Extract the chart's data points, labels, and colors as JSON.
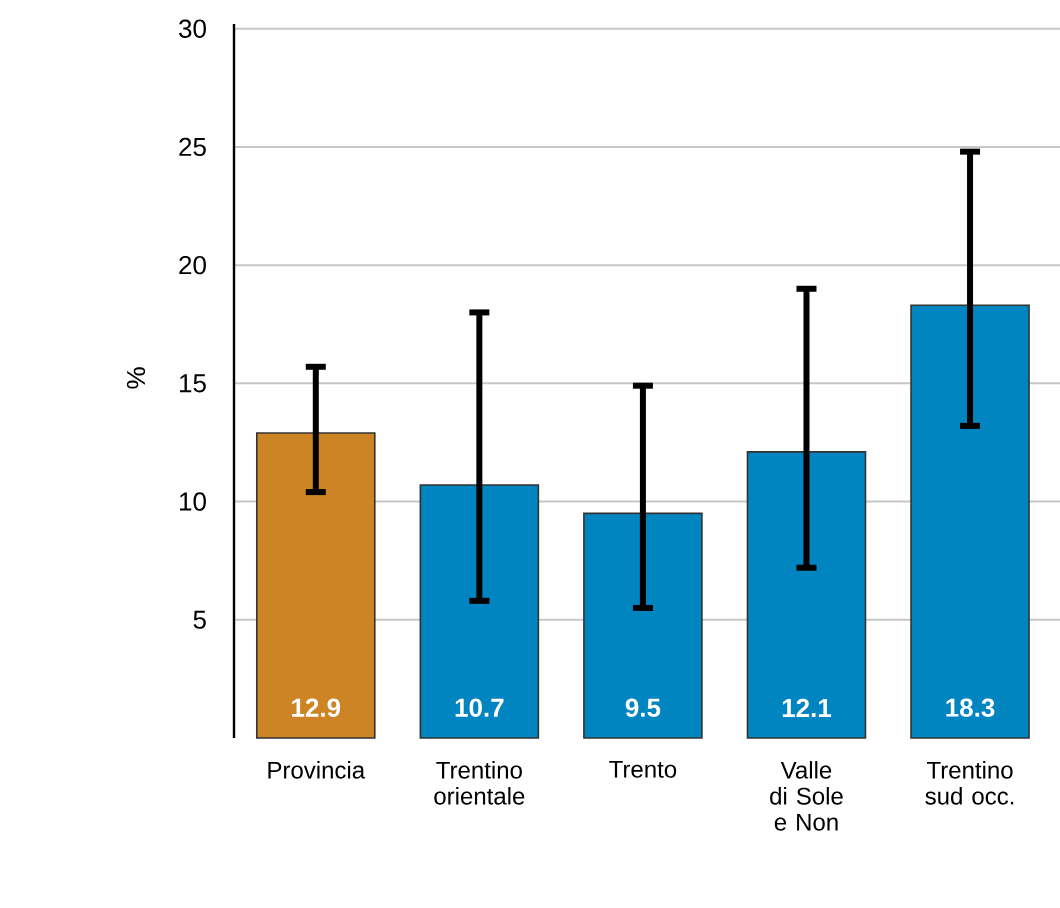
{
  "chart_data": {
    "type": "bar",
    "ylabel": "%",
    "categories": [
      "Provincia",
      "Trentino orientale",
      "Trento",
      "Valle di Sole e Non",
      "Trentino sud occ."
    ],
    "values": [
      12.9,
      10.7,
      9.5,
      12.1,
      18.3
    ],
    "colors": [
      "#cc8425",
      "#0085c0",
      "#0085c0",
      "#0085c0",
      "#0085c0"
    ],
    "errors": [
      [
        10.4,
        15.7
      ],
      [
        5.8,
        18.0
      ],
      [
        5.5,
        14.9
      ],
      [
        7.2,
        19.0
      ],
      [
        13.2,
        24.8
      ]
    ],
    "data_labels": true,
    "ylim": [
      0,
      30.2
    ],
    "yticks": [
      5,
      10,
      15,
      20,
      25,
      30
    ],
    "grid": "y"
  }
}
